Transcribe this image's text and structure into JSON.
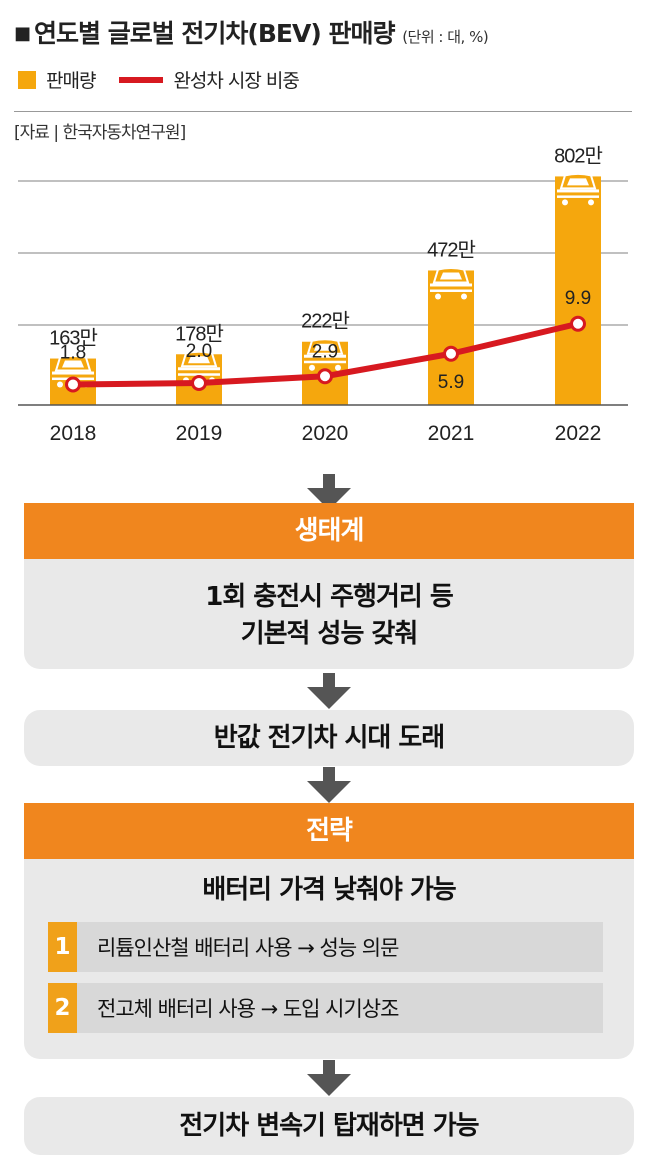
{
  "header": {
    "square": "■",
    "title": "연도별 글로벌 전기차(BEV) 판매량",
    "unit": "(단위 : 대, %)"
  },
  "legend": {
    "bar_label": "판매량",
    "line_label": "완성차 시장 비중"
  },
  "source": "[자료 | 한국자동차연구원]",
  "colors": {
    "bar": "#f5a70d",
    "line": "#d71920",
    "band": "#f0861e",
    "box": "#e9e9e9",
    "item": "#d8d8d8",
    "number": "#f0a11a"
  },
  "chart_data": {
    "type": "bar",
    "categories": [
      "2018",
      "2019",
      "2020",
      "2021",
      "2022"
    ],
    "series": [
      {
        "name": "판매량",
        "type": "bar",
        "values": [
          163,
          178,
          222,
          472,
          802
        ],
        "labels": [
          "163만",
          "178만",
          "222만",
          "472만",
          "802만"
        ]
      },
      {
        "name": "완성차 시장 비중",
        "type": "line",
        "values": [
          1.8,
          2.0,
          2.9,
          5.9,
          9.9
        ],
        "labels": [
          "1.8",
          "2.0",
          "2.9",
          "5.9",
          "9.9"
        ]
      }
    ],
    "grid": true,
    "legend_position": "top-left"
  },
  "flow": {
    "ecosystem": {
      "heading": "생태계",
      "lines": [
        "1회 충전시 주행거리 등",
        "기본적 성능 갖춰"
      ]
    },
    "half_price": "반값 전기차 시대 도래",
    "strategy": {
      "heading": "전략",
      "subtitle": "배터리 가격 낮춰야 가능",
      "items": [
        {
          "num": "1",
          "text": "리튬인산철 배터리 사용 → 성능 의문"
        },
        {
          "num": "2",
          "text": "전고체 배터리 사용 → 도입 시기상조"
        }
      ]
    },
    "final": "전기차 변속기 탑재하면 가능"
  }
}
